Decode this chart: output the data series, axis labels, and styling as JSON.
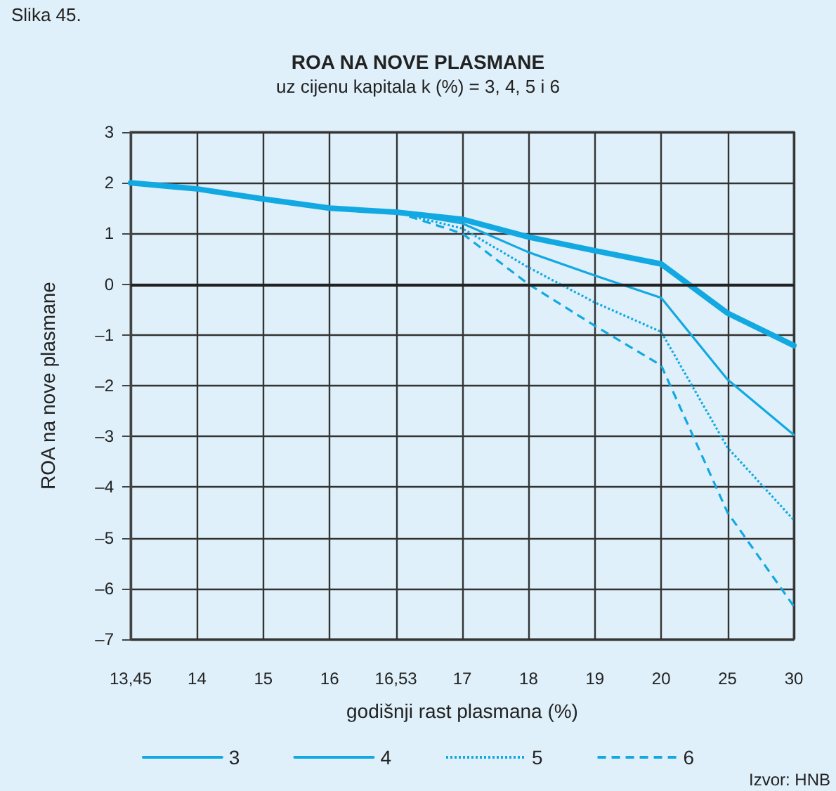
{
  "chart_data": {
    "type": "line",
    "title": "ROA NA NOVE PLASMANE",
    "subtitle": "uz cijenu kapitala k (%) = 3, 4, 5 i 6",
    "xlabel": "godišnji rast plasmana (%)",
    "ylabel": "ROA na nove plasmane",
    "annotations": [
      "Slika 45.",
      "Izvor: HNB"
    ],
    "categories": [
      "13,45",
      "14",
      "15",
      "16",
      "16,53",
      "17",
      "18",
      "19",
      "20",
      "25",
      "30"
    ],
    "series": [
      {
        "name": "3",
        "color": "#12a9e3",
        "line_style": "solid",
        "values": [
          2.0,
          1.88,
          1.68,
          1.5,
          1.42,
          1.28,
          0.93,
          0.66,
          0.4,
          -0.57,
          -1.21
        ]
      },
      {
        "name": "4",
        "color": "#12a9e3",
        "line_style": "solid",
        "values": [
          2.0,
          1.88,
          1.68,
          1.5,
          1.42,
          1.2,
          0.63,
          0.17,
          -0.27,
          -1.88,
          -2.97
        ]
      },
      {
        "name": "5",
        "color": "#12a9e3",
        "line_style": "dotted",
        "values": [
          2.0,
          1.88,
          1.68,
          1.5,
          1.42,
          1.1,
          0.33,
          -0.36,
          -0.94,
          -3.22,
          -4.65
        ]
      },
      {
        "name": "6",
        "color": "#12a9e3",
        "line_style": "dashed",
        "values": [
          2.0,
          1.88,
          1.68,
          1.5,
          1.42,
          1.0,
          0.0,
          -0.82,
          -1.6,
          -4.5,
          -6.35
        ]
      }
    ],
    "ylim": [
      -7,
      3
    ],
    "yticks": [
      {
        "value": -7,
        "label": "–7"
      },
      {
        "value": -6,
        "label": "–6"
      },
      {
        "value": -5,
        "label": "–5"
      },
      {
        "value": -4,
        "label": "–4"
      },
      {
        "value": -3,
        "label": "–3"
      },
      {
        "value": -2,
        "label": "–2"
      },
      {
        "value": -1,
        "label": "–1"
      },
      0,
      1,
      2,
      3
    ],
    "ref_lines": [
      {
        "axis": "y",
        "value": 0,
        "color": "#222222"
      }
    ],
    "grid": true,
    "legend": "bottom",
    "marker": "none"
  }
}
